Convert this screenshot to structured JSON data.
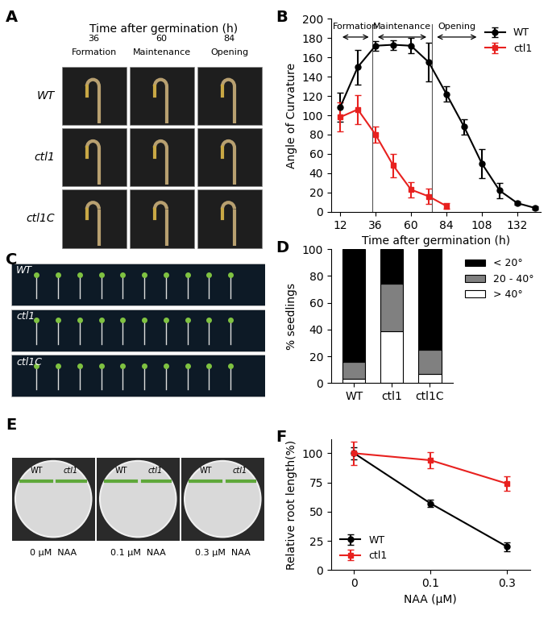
{
  "photo_panels": {
    "A": {
      "title": "Time after germination (h)",
      "columns": [
        {
          "time": "36",
          "stage": "Formation"
        },
        {
          "time": "60",
          "stage": "Maintenance"
        },
        {
          "time": "84",
          "stage": "Opening"
        }
      ],
      "rows": [
        "WT",
        "ctl1",
        "ctl1C"
      ]
    },
    "C": {
      "rows": [
        "WT",
        "ctl1",
        "ctl1C"
      ]
    },
    "E": {
      "plates": [
        "0 μM  NAA",
        "0.1 μM  NAA",
        "0.3 μM  NAA"
      ],
      "genotypes": [
        "WT",
        "ctl1"
      ]
    }
  },
  "chart_data": [
    {
      "type": "line",
      "panel": "B",
      "xlabel": "Time after germination (h)",
      "ylabel": "Angle of Curvature",
      "x": [
        12,
        24,
        36,
        48,
        60,
        72,
        84,
        96,
        108,
        120,
        132,
        144
      ],
      "xlim": [
        6,
        148
      ],
      "xticks": [
        12,
        36,
        60,
        84,
        108,
        132
      ],
      "ylim": [
        0,
        200
      ],
      "yticks": [
        0,
        20,
        40,
        60,
        80,
        100,
        120,
        140,
        160,
        180,
        200
      ],
      "legend": "upper right",
      "series": [
        {
          "name": "WT",
          "color": "#000000",
          "marker": "circle",
          "values": [
            108,
            150,
            172,
            173,
            172,
            155,
            122,
            88,
            50,
            22,
            9,
            4
          ],
          "errors": [
            15,
            18,
            5,
            5,
            8,
            20,
            8,
            8,
            15,
            8,
            2,
            2
          ]
        },
        {
          "name": "ctl1",
          "color": "#e8211f",
          "marker": "square",
          "values": [
            98,
            106,
            80,
            48,
            23,
            16,
            6,
            null,
            null,
            null,
            null,
            null
          ],
          "errors": [
            15,
            15,
            8,
            12,
            8,
            8,
            3,
            null,
            null,
            null,
            null,
            null
          ]
        }
      ],
      "phase_lines": [
        34,
        74
      ],
      "annotations": [
        {
          "text": "Formation",
          "start": 12,
          "end": 33
        },
        {
          "text": "Maintenance",
          "start": 36,
          "end": 72
        },
        {
          "text": "Opening",
          "start": 76,
          "end": 106
        }
      ]
    },
    {
      "type": "bar",
      "panel": "D",
      "ylabel": "% seedlings",
      "stacked": true,
      "categories": [
        "WT",
        "ctl1",
        "ctl1C"
      ],
      "ylim": [
        0,
        100
      ],
      "yticks": [
        0,
        20,
        40,
        60,
        80,
        100
      ],
      "legend": "right",
      "series": [
        {
          "name": "> 40°",
          "color": "#ffffff",
          "values": [
            3,
            39,
            7
          ]
        },
        {
          "name": "20 - 40°",
          "color": "#808080",
          "values": [
            13,
            35,
            18
          ]
        },
        {
          "name": "< 20°",
          "color": "#000000",
          "values": [
            84,
            26,
            75
          ]
        }
      ]
    },
    {
      "type": "line",
      "panel": "F",
      "xlabel": "NAA (μM)",
      "ylabel": "Relative root length(%)",
      "categories": [
        "0",
        "0.1",
        "0.3"
      ],
      "ylim": [
        0,
        112
      ],
      "yticks": [
        0,
        25,
        50,
        75,
        100
      ],
      "legend": "lower left",
      "series": [
        {
          "name": "WT",
          "color": "#000000",
          "marker": "circle",
          "values": [
            100,
            57,
            20
          ],
          "errors": [
            5,
            3,
            4
          ]
        },
        {
          "name": "ctl1",
          "color": "#e8211f",
          "marker": "square",
          "values": [
            100,
            94,
            74
          ],
          "errors": [
            10,
            7,
            6
          ]
        }
      ]
    }
  ]
}
